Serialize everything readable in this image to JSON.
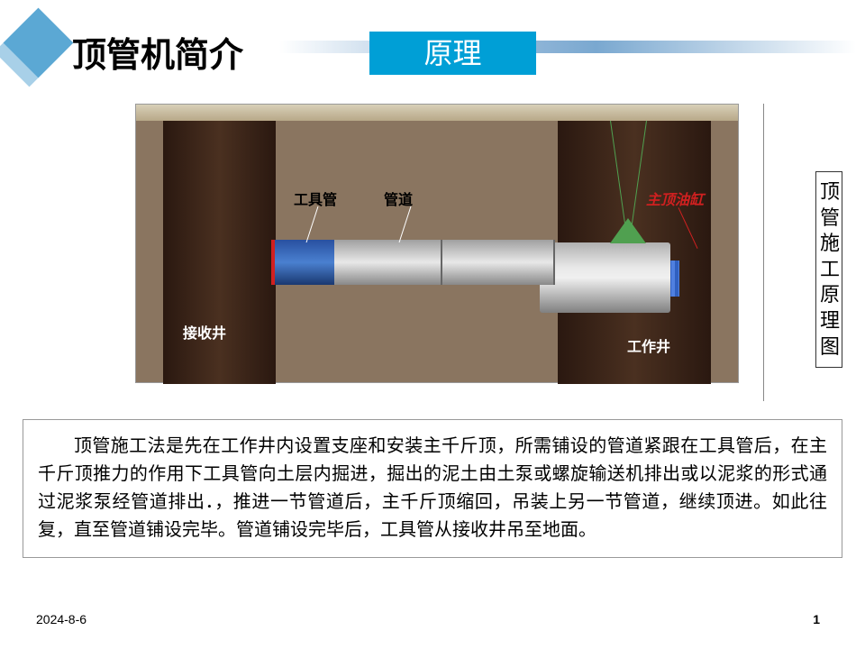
{
  "header": {
    "title": "顶管机简介",
    "subtitle": "原理",
    "subtitle_bg": "#009fd6",
    "accent_color": "#5ba8d4"
  },
  "diagram": {
    "caption": "顶管施工原理图",
    "labels": {
      "tool_pipe": "工具管",
      "pipe": "管道",
      "main_jack": "主顶油缸",
      "receive_shaft": "接收井",
      "work_shaft": "工作井"
    },
    "colors": {
      "soil": "#8a7560",
      "shaft": "#3a2818",
      "tool_pipe": "#3060b0",
      "pipe": "#d0d0d0",
      "jack": "#4070d0",
      "crane": "#50a050",
      "red_edge": "#d02020"
    }
  },
  "description": "顶管施工法是先在工作井内设置支座和安装主千斤顶，所需铺设的管道紧跟在工具管后，在主千斤顶推力的作用下工具管向土层内掘进，掘出的泥土由土泵或螺旋输送机排出或以泥浆的形式通过泥浆泵经管道排出．，推进一节管道后，主千斤顶缩回，吊装上另一节管道，继续顶进。如此往复，直至管道铺设完毕。管道铺设完毕后，工具管从接收井吊至地面。",
  "footer": {
    "date": "2024-8-6",
    "page": "1"
  }
}
